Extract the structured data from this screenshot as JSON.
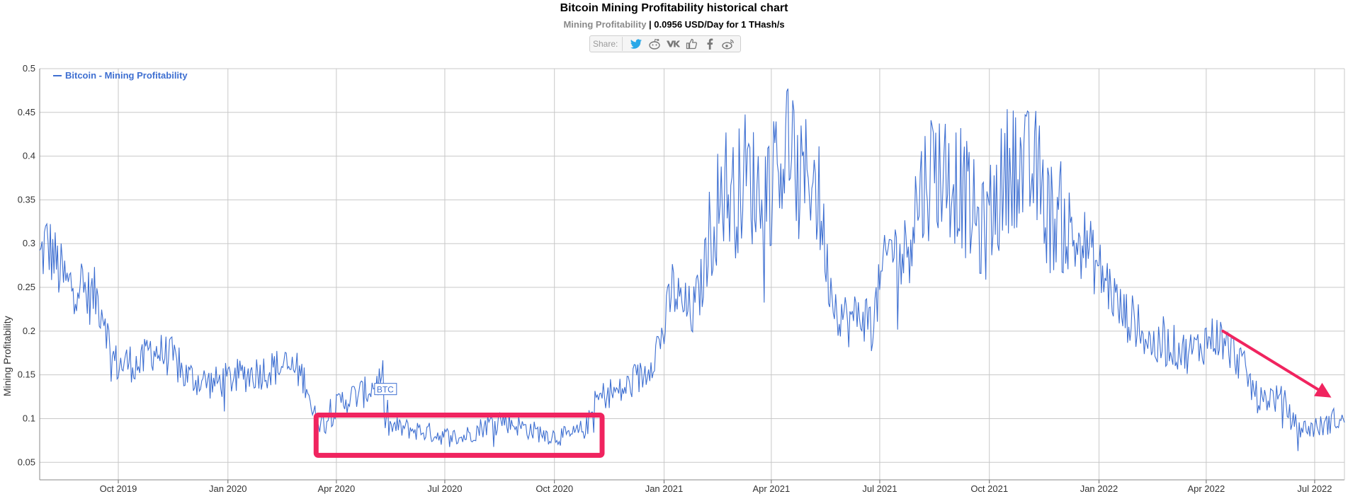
{
  "header": {
    "title": "Bitcoin Mining Profitability historical chart",
    "subtitle_label": "Mining Profitability",
    "subtitle_value": " | 0.0956 USD/Day for 1 THash/s",
    "share_label": "Share:",
    "share_icons": [
      "twitter-icon",
      "reddit-icon",
      "vk-icon",
      "like-icon",
      "facebook-icon",
      "weibo-icon"
    ]
  },
  "colors": {
    "line": "#3e6fd1",
    "highlight": "#f0245f",
    "grid": "#c8c8c8"
  },
  "chart_data": {
    "type": "line",
    "title": "Bitcoin Mining Profitability historical chart",
    "ylabel": "Mining Profitability",
    "xlabel": "",
    "ylim": [
      0.03,
      0.5
    ],
    "xlim": [
      "2019-07-27",
      "2022-07-26"
    ],
    "yticks": [
      "0.05",
      "0.1",
      "0.15",
      "0.2",
      "0.25",
      "0.3",
      "0.35",
      "0.4",
      "0.45",
      "0.5"
    ],
    "xticks": [
      {
        "date": "2019-10-01",
        "label": "Oct 2019"
      },
      {
        "date": "2020-01-01",
        "label": "Jan 2020"
      },
      {
        "date": "2020-04-01",
        "label": "Apr 2020"
      },
      {
        "date": "2020-07-01",
        "label": "Jul 2020"
      },
      {
        "date": "2020-10-01",
        "label": "Oct 2020"
      },
      {
        "date": "2021-01-01",
        "label": "Jan 2021"
      },
      {
        "date": "2021-04-01",
        "label": "Apr 2021"
      },
      {
        "date": "2021-07-01",
        "label": "Jul 2021"
      },
      {
        "date": "2021-10-01",
        "label": "Oct 2021"
      },
      {
        "date": "2022-01-01",
        "label": "Jan 2022"
      },
      {
        "date": "2022-04-01",
        "label": "Apr 2022"
      },
      {
        "date": "2022-07-01",
        "label": "Jul 2022"
      }
    ],
    "legend": {
      "label": "Bitcoin - Mining Profitability",
      "placement": "top-left"
    },
    "annotation": {
      "label": "BTC",
      "date": "2020-05-12",
      "value": 0.133
    },
    "highlight_box": {
      "from": "2020-03-15",
      "to": "2020-11-10",
      "y_from": 0.058,
      "y_to": 0.104
    },
    "arrow": {
      "from_date": "2022-04-15",
      "from_value": 0.2,
      "to_date": "2022-07-15",
      "to_value": 0.124
    },
    "grid": true,
    "series": [
      {
        "name": "Bitcoin - Mining Profitability",
        "points": [
          [
            "2019-07-27",
            0.28
          ],
          [
            "2019-08-01",
            0.3
          ],
          [
            "2019-08-06",
            0.29
          ],
          [
            "2019-08-12",
            0.27
          ],
          [
            "2019-08-20",
            0.25
          ],
          [
            "2019-08-28",
            0.26
          ],
          [
            "2019-09-05",
            0.24
          ],
          [
            "2019-09-12",
            0.24
          ],
          [
            "2019-09-20",
            0.22
          ],
          [
            "2019-09-24",
            0.175
          ],
          [
            "2019-10-01",
            0.16
          ],
          [
            "2019-10-10",
            0.165
          ],
          [
            "2019-10-20",
            0.16
          ],
          [
            "2019-10-27",
            0.18
          ],
          [
            "2019-11-05",
            0.175
          ],
          [
            "2019-11-15",
            0.17
          ],
          [
            "2019-11-25",
            0.15
          ],
          [
            "2019-12-05",
            0.145
          ],
          [
            "2019-12-20",
            0.14
          ],
          [
            "2020-01-01",
            0.145
          ],
          [
            "2020-01-15",
            0.15
          ],
          [
            "2020-02-01",
            0.155
          ],
          [
            "2020-02-15",
            0.16
          ],
          [
            "2020-02-28",
            0.155
          ],
          [
            "2020-03-08",
            0.14
          ],
          [
            "2020-03-12",
            0.105
          ],
          [
            "2020-03-20",
            0.095
          ],
          [
            "2020-03-28",
            0.105
          ],
          [
            "2020-04-05",
            0.12
          ],
          [
            "2020-04-15",
            0.125
          ],
          [
            "2020-04-25",
            0.13
          ],
          [
            "2020-05-05",
            0.14
          ],
          [
            "2020-05-10",
            0.15
          ],
          [
            "2020-05-12",
            0.09
          ],
          [
            "2020-05-20",
            0.09
          ],
          [
            "2020-06-01",
            0.088
          ],
          [
            "2020-06-15",
            0.085
          ],
          [
            "2020-07-01",
            0.08
          ],
          [
            "2020-07-15",
            0.078
          ],
          [
            "2020-08-01",
            0.09
          ],
          [
            "2020-08-15",
            0.1
          ],
          [
            "2020-09-01",
            0.092
          ],
          [
            "2020-09-15",
            0.085
          ],
          [
            "2020-10-01",
            0.08
          ],
          [
            "2020-10-15",
            0.08
          ],
          [
            "2020-10-28",
            0.09
          ],
          [
            "2020-11-05",
            0.12
          ],
          [
            "2020-11-15",
            0.13
          ],
          [
            "2020-11-25",
            0.13
          ],
          [
            "2020-12-05",
            0.14
          ],
          [
            "2020-12-15",
            0.15
          ],
          [
            "2020-12-22",
            0.17
          ],
          [
            "2021-01-01",
            0.2
          ],
          [
            "2021-01-08",
            0.25
          ],
          [
            "2021-01-15",
            0.23
          ],
          [
            "2021-01-25",
            0.22
          ],
          [
            "2021-02-01",
            0.25
          ],
          [
            "2021-02-10",
            0.32
          ],
          [
            "2021-02-20",
            0.37
          ],
          [
            "2021-03-01",
            0.35
          ],
          [
            "2021-03-10",
            0.38
          ],
          [
            "2021-03-20",
            0.36
          ],
          [
            "2021-04-01",
            0.37
          ],
          [
            "2021-04-10",
            0.4
          ],
          [
            "2021-04-15",
            0.42
          ],
          [
            "2021-04-25",
            0.36
          ],
          [
            "2021-05-05",
            0.39
          ],
          [
            "2021-05-12",
            0.34
          ],
          [
            "2021-05-18",
            0.27
          ],
          [
            "2021-05-25",
            0.23
          ],
          [
            "2021-06-05",
            0.21
          ],
          [
            "2021-06-15",
            0.22
          ],
          [
            "2021-06-25",
            0.21
          ],
          [
            "2021-07-01",
            0.25
          ],
          [
            "2021-07-10",
            0.3
          ],
          [
            "2021-07-20",
            0.28
          ],
          [
            "2021-07-28",
            0.33
          ],
          [
            "2021-08-05",
            0.36
          ],
          [
            "2021-08-15",
            0.39
          ],
          [
            "2021-08-25",
            0.38
          ],
          [
            "2021-09-05",
            0.37
          ],
          [
            "2021-09-15",
            0.34
          ],
          [
            "2021-09-25",
            0.31
          ],
          [
            "2021-10-01",
            0.33
          ],
          [
            "2021-10-10",
            0.36
          ],
          [
            "2021-10-20",
            0.4
          ],
          [
            "2021-10-30",
            0.38
          ],
          [
            "2021-11-10",
            0.38
          ],
          [
            "2021-11-20",
            0.33
          ],
          [
            "2021-12-01",
            0.33
          ],
          [
            "2021-12-10",
            0.3
          ],
          [
            "2021-12-20",
            0.3
          ],
          [
            "2022-01-01",
            0.27
          ],
          [
            "2022-01-10",
            0.25
          ],
          [
            "2022-01-20",
            0.22
          ],
          [
            "2022-02-01",
            0.21
          ],
          [
            "2022-02-10",
            0.19
          ],
          [
            "2022-02-20",
            0.18
          ],
          [
            "2022-03-01",
            0.185
          ],
          [
            "2022-03-15",
            0.175
          ],
          [
            "2022-03-25",
            0.18
          ],
          [
            "2022-04-01",
            0.19
          ],
          [
            "2022-04-10",
            0.195
          ],
          [
            "2022-04-20",
            0.18
          ],
          [
            "2022-04-30",
            0.165
          ],
          [
            "2022-05-08",
            0.14
          ],
          [
            "2022-05-15",
            0.12
          ],
          [
            "2022-05-25",
            0.125
          ],
          [
            "2022-06-05",
            0.12
          ],
          [
            "2022-06-13",
            0.095
          ],
          [
            "2022-06-20",
            0.088
          ],
          [
            "2022-07-01",
            0.09
          ],
          [
            "2022-07-10",
            0.092
          ],
          [
            "2022-07-18",
            0.1
          ],
          [
            "2022-07-26",
            0.0956
          ]
        ]
      }
    ]
  }
}
